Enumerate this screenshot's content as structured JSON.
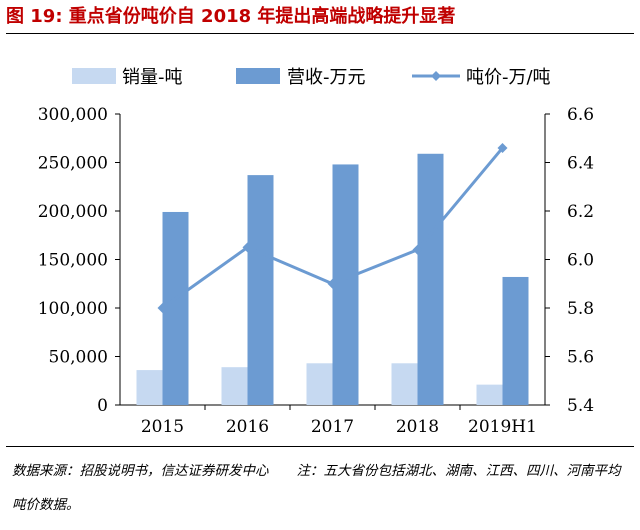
{
  "figure": {
    "title": "图 19: 重点省份吨价自 2018 年提出高端战略提升显著",
    "source": "数据来源：招股说明书，信达证券研发中心",
    "note": "注：五大省份包括湖北、湖南、江西、四川、河南平均吨价数据。"
  },
  "colors": {
    "volume": "#c6d9f1",
    "revenue": "#6c9bd2",
    "price": "#6c9bd2",
    "title": "#c00000"
  },
  "chart_data": {
    "type": "bar",
    "categories": [
      "2015",
      "2016",
      "2017",
      "2018",
      "2019H1"
    ],
    "series": [
      {
        "name": "销量-吨",
        "kind": "bar",
        "axis": "left",
        "values": [
          36000,
          39000,
          43000,
          43000,
          21000
        ]
      },
      {
        "name": "营收-万元",
        "kind": "bar",
        "axis": "left",
        "values": [
          199000,
          237000,
          248000,
          259000,
          132000
        ]
      },
      {
        "name": "吨价-万/吨",
        "kind": "line",
        "axis": "right",
        "values": [
          5.8,
          6.05,
          5.9,
          6.04,
          6.46
        ]
      }
    ],
    "y_left": {
      "lim": [
        0,
        300000
      ],
      "ticks": [
        "0",
        "50,000",
        "100,000",
        "150,000",
        "200,000",
        "250,000",
        "300,000"
      ]
    },
    "y_right": {
      "lim": [
        5.4,
        6.6
      ],
      "ticks": [
        "5.4",
        "5.6",
        "5.8",
        "6.0",
        "6.2",
        "6.4",
        "6.6"
      ]
    },
    "grid": false,
    "legend": "top"
  }
}
